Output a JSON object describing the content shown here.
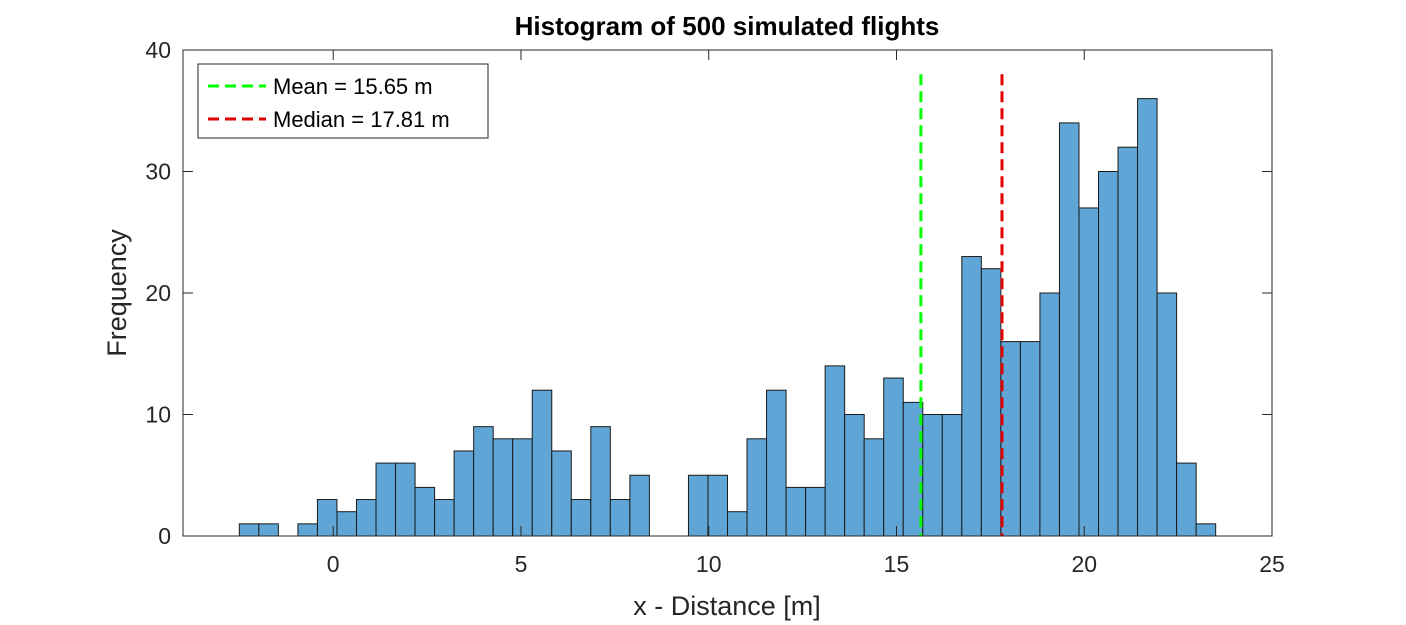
{
  "chart_data": {
    "type": "bar",
    "title": "Histogram of 500 simulated flights",
    "xlabel": "x - Distance [m]",
    "ylabel": "Frequency",
    "xlim": [
      -4,
      25
    ],
    "ylim": [
      0,
      40
    ],
    "xticks": [
      0,
      5,
      10,
      15,
      20,
      25
    ],
    "yticks": [
      0,
      10,
      20,
      30,
      40
    ],
    "bin_start": -2.5,
    "bin_width": 0.52,
    "counts": [
      1,
      1,
      0,
      1,
      3,
      2,
      3,
      6,
      6,
      4,
      3,
      7,
      9,
      8,
      8,
      12,
      7,
      3,
      9,
      3,
      5,
      0,
      0,
      5,
      5,
      2,
      8,
      12,
      4,
      4,
      14,
      10,
      8,
      13,
      11,
      10,
      10,
      23,
      22,
      16,
      16,
      20,
      34,
      27,
      30,
      32,
      36,
      20,
      6,
      1
    ],
    "bar_color": "#5fa6d6",
    "bar_edge_color": "#1a1a1a",
    "vlines": [
      {
        "label": "Mean = 15.65 m",
        "x": 15.65,
        "y_top": 38,
        "color": "#00ff00",
        "style": "dashed"
      },
      {
        "label": "Median = 17.81 m",
        "x": 17.81,
        "y_top": 38,
        "color": "#e00000",
        "style": "dashed"
      }
    ],
    "legend_position": "top-left",
    "grid": false
  }
}
